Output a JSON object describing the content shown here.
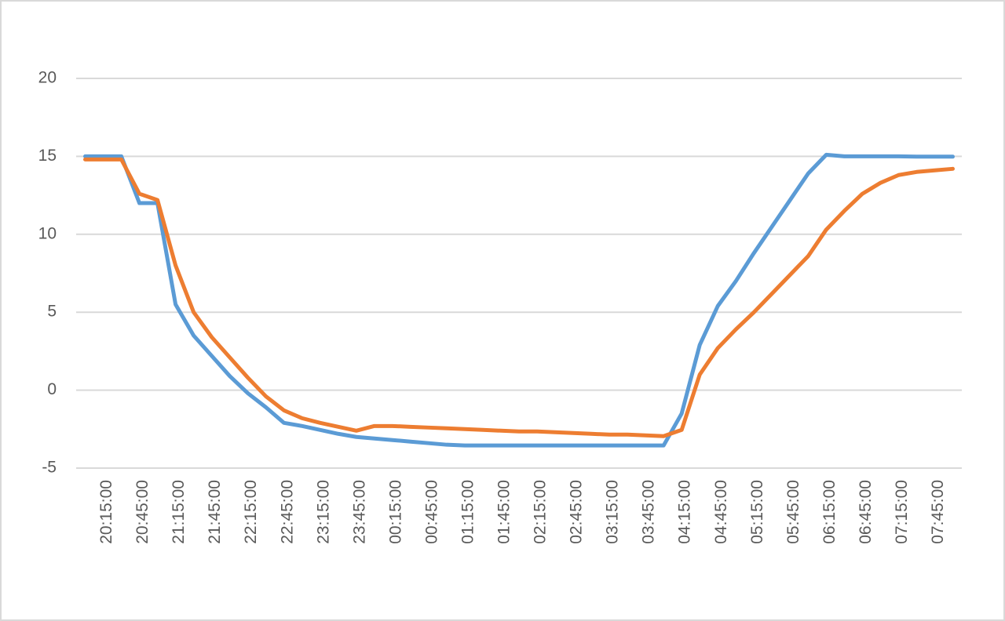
{
  "chart_data": {
    "type": "line",
    "categories": [
      null,
      "20:15:00",
      null,
      "20:45:00",
      null,
      "21:15:00",
      null,
      "21:45:00",
      null,
      "22:15:00",
      null,
      "22:45:00",
      null,
      "23:15:00",
      null,
      "23:45:00",
      null,
      "00:15:00",
      null,
      "00:45:00",
      null,
      "01:15:00",
      null,
      "01:45:00",
      null,
      "02:15:00",
      null,
      "02:45:00",
      null,
      "03:15:00",
      null,
      "03:45:00",
      null,
      "04:15:00",
      null,
      "04:45:00",
      null,
      "05:15:00",
      null,
      "05:45:00",
      null,
      "06:15:00",
      null,
      "06:45:00",
      null,
      "07:15:00",
      null,
      "07:45:00",
      null
    ],
    "series": [
      {
        "color": "#5b9bd5",
        "values": [
          15,
          15,
          15,
          12,
          12,
          5.5,
          3.5,
          2.2,
          0.9,
          -0.2,
          -1.1,
          -2.1,
          -2.3,
          -2.55,
          -2.8,
          -3.0,
          -3.1,
          -3.2,
          -3.3,
          -3.4,
          -3.5,
          -3.55,
          -3.55,
          -3.55,
          -3.55,
          -3.55,
          -3.55,
          -3.55,
          -3.55,
          -3.55,
          -3.55,
          -3.55,
          -3.55,
          -1.5,
          2.9,
          5.4,
          7.0,
          8.8,
          10.5,
          12.2,
          13.9,
          15.1,
          15.0,
          15.0,
          15.0,
          15.0,
          14.98,
          14.98,
          14.98
        ]
      },
      {
        "color": "#ed7d31",
        "values": [
          14.8,
          14.8,
          14.8,
          12.6,
          12.2,
          8,
          5,
          3.4,
          2.1,
          0.8,
          -0.4,
          -1.3,
          -1.8,
          -2.1,
          -2.35,
          -2.6,
          -2.3,
          -2.3,
          -2.35,
          -2.4,
          -2.45,
          -2.5,
          -2.55,
          -2.6,
          -2.65,
          -2.65,
          -2.7,
          -2.75,
          -2.8,
          -2.85,
          -2.85,
          -2.9,
          -2.95,
          -2.55,
          1.0,
          2.7,
          3.9,
          5.0,
          6.2,
          7.4,
          8.6,
          10.3,
          11.5,
          12.6,
          13.3,
          13.8,
          14.0,
          14.1,
          14.2
        ]
      }
    ],
    "ylim": [
      -5,
      20
    ],
    "yticks": [
      -5,
      0,
      5,
      10,
      15,
      20
    ],
    "grid": true
  }
}
